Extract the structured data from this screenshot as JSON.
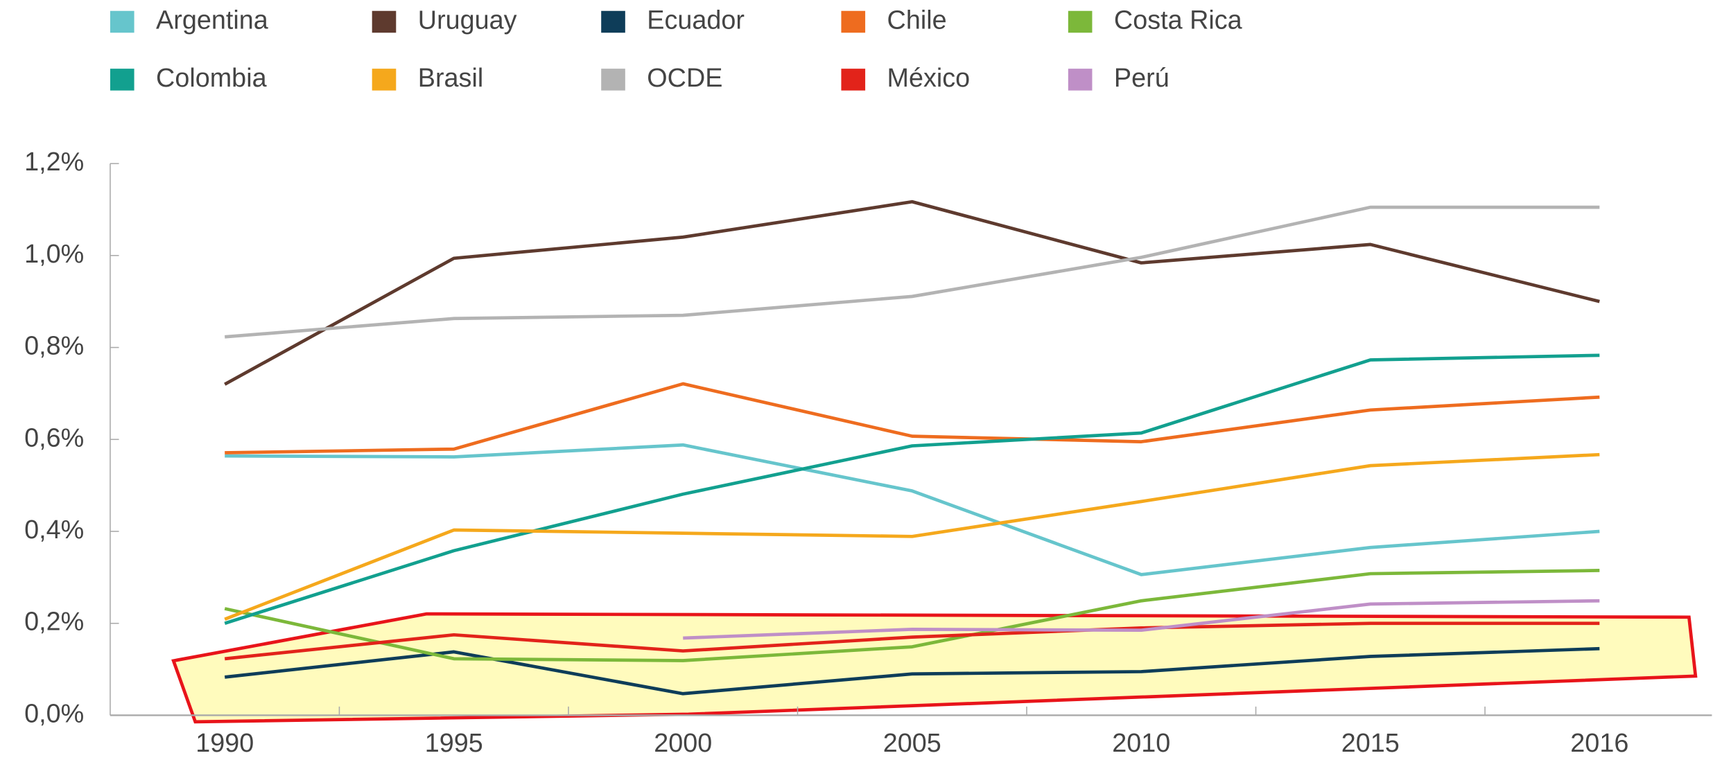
{
  "chart_data": {
    "type": "line",
    "categories": [
      "1990",
      "1995",
      "2000",
      "2005",
      "2010",
      "2015",
      "2016"
    ],
    "ylim": [
      0,
      1.2
    ],
    "yticks": [
      {
        "value": 0,
        "label": "0,0%"
      },
      {
        "value": 0.2,
        "label": "0,2%"
      },
      {
        "value": 0.4,
        "label": "0,4%"
      },
      {
        "value": 0.6,
        "label": "0,6%"
      },
      {
        "value": 0.8,
        "label": "0,8%"
      },
      {
        "value": 1.0,
        "label": "1,0%"
      },
      {
        "value": 1.2,
        "label": "1,2%"
      }
    ],
    "grid": false,
    "legend": "top",
    "series": [
      {
        "name": "Argentina",
        "color": "#66c5cc",
        "values": [
          0.564,
          0.562,
          0.588,
          0.488,
          0.306,
          0.365,
          0.4
        ]
      },
      {
        "name": "Uruguay",
        "color": "#5e3a2e",
        "values": [
          0.72,
          0.994,
          1.04,
          1.117,
          0.984,
          1.024,
          0.9
        ]
      },
      {
        "name": "Ecuador",
        "color": "#0e3d59",
        "values": [
          0.083,
          0.138,
          0.047,
          0.09,
          0.095,
          0.128,
          0.145
        ]
      },
      {
        "name": "Chile",
        "color": "#ee6c1f",
        "values": [
          0.571,
          0.579,
          0.721,
          0.607,
          0.595,
          0.664,
          0.692
        ]
      },
      {
        "name": "Costa Rica",
        "color": "#7cb83a",
        "values": [
          0.232,
          0.123,
          0.119,
          0.149,
          0.249,
          0.308,
          0.315
        ]
      },
      {
        "name": "Colombia",
        "color": "#12a08f",
        "values": [
          0.2,
          0.358,
          0.481,
          0.586,
          0.614,
          0.773,
          0.783
        ]
      },
      {
        "name": "Brasil",
        "color": "#f5a81c",
        "values": [
          0.209,
          0.403,
          0.396,
          0.389,
          0.465,
          0.543,
          0.567
        ]
      },
      {
        "name": "OCDE",
        "color": "#b3b3b3",
        "values": [
          0.823,
          0.863,
          0.87,
          0.911,
          0.996,
          1.105,
          1.105
        ]
      },
      {
        "name": "México",
        "color": "#e2231a",
        "values": [
          0.123,
          0.175,
          0.14,
          0.17,
          0.19,
          0.2,
          0.2
        ]
      },
      {
        "name": "Perú",
        "color": "#bf8fc7",
        "values": [
          null,
          null,
          0.168,
          0.187,
          0.185,
          0.242,
          0.249
        ]
      }
    ]
  }
}
